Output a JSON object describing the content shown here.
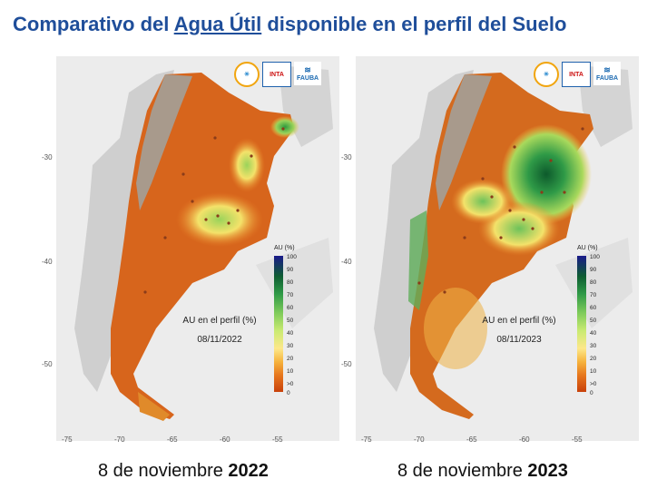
{
  "title": {
    "prefix": "Comparativo del ",
    "highlight": "Agua Útil",
    "suffix": " disponible en el perfil del Suelo"
  },
  "axis": {
    "y_ticks": [
      "-30",
      "-40",
      "-50"
    ],
    "x_ticks": [
      "-75",
      "-70",
      "-65",
      "-60",
      "-55"
    ]
  },
  "logos": {
    "inta": "INTA",
    "fauba": "FAUBA"
  },
  "legend": {
    "title": "AU (%)",
    "labels": [
      "100",
      "90",
      "80",
      "70",
      "60",
      "50",
      "40",
      "30",
      "20",
      "10",
      ">0",
      "0"
    ]
  },
  "maps": [
    {
      "label_line1": "AU en el perfil (%)",
      "label_line2": "08/11/2022",
      "caption_text": "8 de noviembre ",
      "caption_year": "2022"
    },
    {
      "label_line1": "AU en el perfil (%)",
      "label_line2": "08/11/2023",
      "caption_text": "8 de noviembre ",
      "caption_year": "2023"
    }
  ]
}
